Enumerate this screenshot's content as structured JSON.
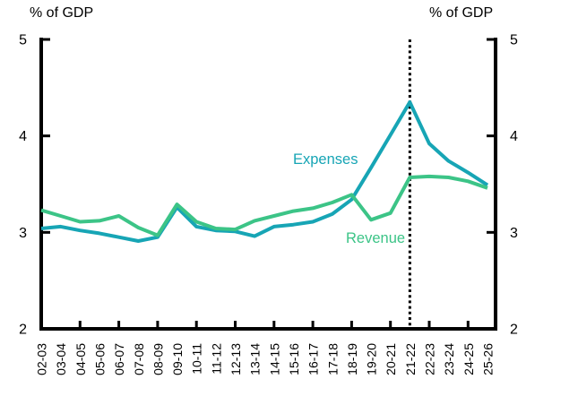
{
  "chart_data": {
    "type": "line",
    "title": "",
    "left_axis_unit": "% of GDP",
    "right_axis_unit": "% of GDP",
    "xlabel": "",
    "ylabel": "% of GDP",
    "ylim": [
      2,
      5
    ],
    "yticks": [
      2,
      3,
      4,
      5
    ],
    "grid": false,
    "legend_position": "inline-labels-on-chart",
    "axis_color": "#000000",
    "dotted_line_category": "21-22",
    "dotted_line_color": "#000000",
    "categories": [
      "02-03",
      "03-04",
      "04-05",
      "05-06",
      "06-07",
      "07-08",
      "08-09",
      "09-10",
      "10-11",
      "11-12",
      "12-13",
      "13-14",
      "14-15",
      "15-16",
      "16-17",
      "17-18",
      "18-19",
      "19-20",
      "20-21",
      "21-22",
      "22-23",
      "23-24",
      "24-25",
      "25-26"
    ],
    "series": [
      {
        "name": "Expenses",
        "color": "#17a5b5",
        "values": [
          3.04,
          3.06,
          3.02,
          2.99,
          2.95,
          2.91,
          2.95,
          3.26,
          3.06,
          3.02,
          3.01,
          2.96,
          3.06,
          3.08,
          3.11,
          3.19,
          3.34,
          3.67,
          4.01,
          4.35,
          3.92,
          3.74,
          3.62,
          3.49
        ]
      },
      {
        "name": "Revenue",
        "color": "#3cc487",
        "values": [
          3.23,
          3.17,
          3.11,
          3.12,
          3.17,
          3.05,
          2.97,
          3.29,
          3.11,
          3.04,
          3.03,
          3.12,
          3.17,
          3.22,
          3.25,
          3.31,
          3.39,
          3.13,
          3.2,
          3.57,
          3.58,
          3.57,
          3.53,
          3.46
        ]
      }
    ]
  }
}
